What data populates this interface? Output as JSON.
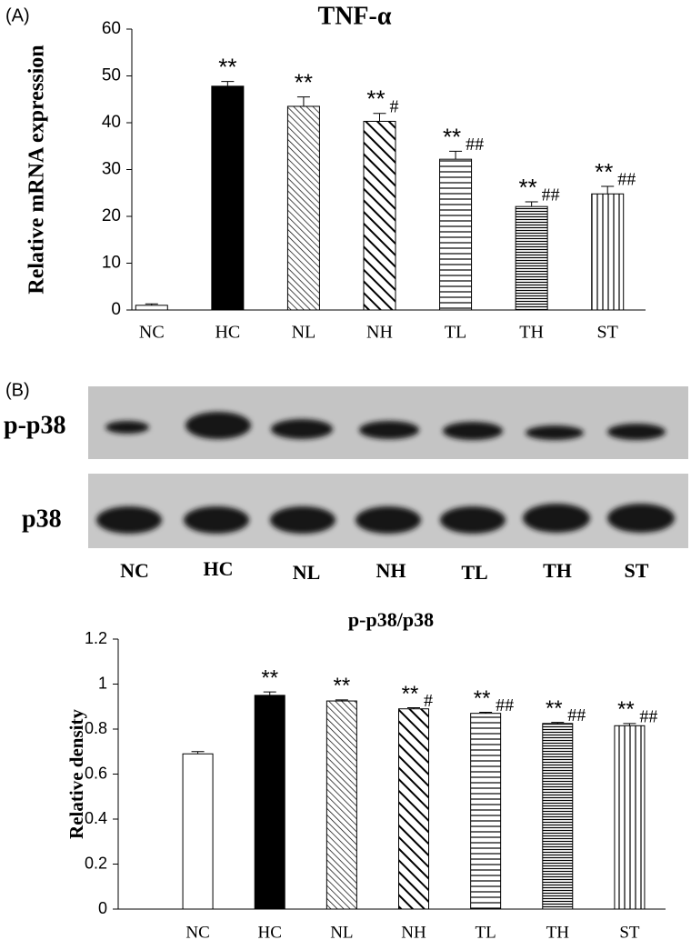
{
  "panel_labels": [
    "(A)",
    "(B)"
  ],
  "blot": {
    "rows": [
      "p-p38",
      "p38"
    ],
    "lanes": [
      "NC",
      "HC",
      "NL",
      "NH",
      "TL",
      "TH",
      "ST"
    ]
  },
  "chart_data": [
    {
      "type": "bar",
      "title": "TNF-α",
      "y_label": "Relative mRNA expression",
      "categories": [
        "NC",
        "HC",
        "NL",
        "NH",
        "TL",
        "TH",
        "ST"
      ],
      "values": [
        1,
        47.8,
        43.5,
        40.3,
        32.2,
        22.1,
        24.8
      ],
      "errors": [
        0.3,
        1,
        2,
        1.7,
        1.7,
        1,
        1.6
      ],
      "stars": [
        null,
        "**",
        "**",
        "**",
        "**",
        "**",
        "**"
      ],
      "hashes": [
        null,
        null,
        null,
        "#",
        "##",
        "##",
        "##"
      ],
      "patterns": [
        "none",
        "solid",
        "diag-fine",
        "diag-bold",
        "hlines",
        "hlines-fine",
        "vlines"
      ],
      "color": "#000000",
      "ylim": [
        0,
        60
      ],
      "yticks": [
        0,
        10,
        20,
        30,
        40,
        50,
        60
      ]
    },
    {
      "type": "bar",
      "title": "p-p38/p38",
      "y_label": "Relative density",
      "categories": [
        "NC",
        "HC",
        "NL",
        "NH",
        "TL",
        "TH",
        "ST"
      ],
      "values": [
        0.69,
        0.95,
        0.925,
        0.89,
        0.87,
        0.825,
        0.815
      ],
      "errors": [
        0.01,
        0.015,
        0.005,
        0.005,
        0.005,
        0.005,
        0.01
      ],
      "stars": [
        null,
        "**",
        "**",
        "**",
        "**",
        "**",
        "**"
      ],
      "hashes": [
        null,
        null,
        null,
        "#",
        "##",
        "##",
        "##"
      ],
      "patterns": [
        "none",
        "solid",
        "diag-fine",
        "diag-bold",
        "hlines",
        "hlines-fine",
        "vlines"
      ],
      "color": "#000000",
      "ylim": [
        0,
        1.2
      ],
      "yticks": [
        0,
        0.2,
        0.4,
        0.6,
        0.8,
        1,
        1.2
      ]
    }
  ]
}
